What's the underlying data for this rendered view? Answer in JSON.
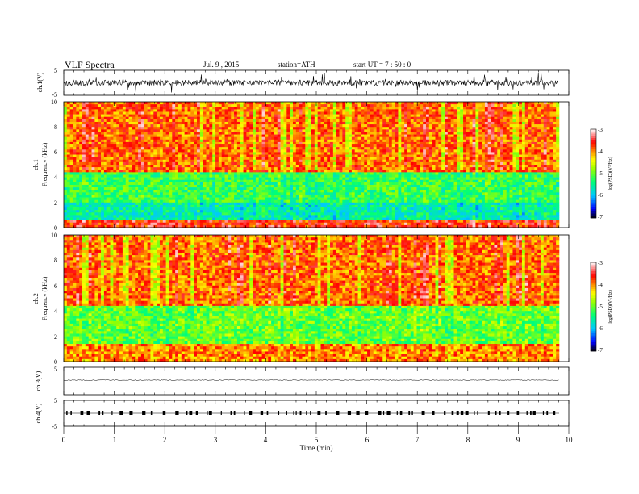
{
  "header": {
    "title": "VLF  Spectra",
    "date": "Jul.  9  , 2015",
    "station": "station=ATH",
    "start": "start  UT  =   7  : 50 : 0"
  },
  "chart_data": [
    {
      "type": "line",
      "panel": "ch1-waveform",
      "ylabel": "ch.1(V)",
      "ylim": [
        -5,
        5
      ],
      "yticks": [
        "5",
        "-5"
      ],
      "xlim": [
        0,
        10
      ],
      "note_series_extent_min": [
        0,
        9.8
      ],
      "approx_baseline_V": 0,
      "approx_band_V": [
        -2,
        2
      ]
    },
    {
      "type": "heatmap",
      "panel": "ch1-spectrogram",
      "ylabel": "ch.1\nFrequency  (kHz)",
      "ylabel_lines": [
        "ch.1",
        "Frequency  (kHz)"
      ],
      "ylim": [
        0,
        10
      ],
      "yticks": [
        "0",
        "2",
        "4",
        "6",
        "8",
        "10"
      ],
      "xlim": [
        0,
        10
      ],
      "colorbar": {
        "label": "log(PSD)(V²/Hz)",
        "range": [
          -7,
          -3
        ],
        "ticks": [
          "-3",
          "-4",
          "-5",
          "-6",
          "-7"
        ]
      },
      "bands_kHz_logPSD": [
        {
          "f": [
            0,
            0.6
          ],
          "level": -3.6
        },
        {
          "f": [
            0.6,
            2.0
          ],
          "level": -5.6
        },
        {
          "f": [
            2.0,
            4.5
          ],
          "level": -5.2
        },
        {
          "f": [
            4.5,
            10
          ],
          "level": -3.9
        }
      ]
    },
    {
      "type": "heatmap",
      "panel": "ch2-spectrogram",
      "ylabel": "ch.2\nFrequency  (kHz)",
      "ylabel_lines": [
        "ch.2",
        "Frequency  (kHz)"
      ],
      "ylim": [
        0,
        10
      ],
      "yticks": [
        "0",
        "2",
        "4",
        "6",
        "8",
        "10"
      ],
      "xlim": [
        0,
        10
      ],
      "colorbar": {
        "label": "log(PSD)(V²/Hz)",
        "range": [
          -7,
          -3
        ],
        "ticks": [
          "-3",
          "-4",
          "-5",
          "-6",
          "-7"
        ]
      },
      "bands_kHz_logPSD": [
        {
          "f": [
            0,
            1.4
          ],
          "level": -4.0
        },
        {
          "f": [
            1.4,
            4.5
          ],
          "level": -5.0
        },
        {
          "f": [
            4.5,
            10
          ],
          "level": -3.9
        }
      ]
    },
    {
      "type": "line",
      "panel": "ch3-waveform",
      "ylabel": "ch.3(V)",
      "ylim": [
        -5,
        5
      ],
      "yticks": [
        "5"
      ],
      "xlim": [
        0,
        10
      ],
      "approx_baseline_V": 0.3
    },
    {
      "type": "line",
      "panel": "ch4-waveform",
      "ylabel": "ch.4(V)",
      "ylim": [
        -5,
        5
      ],
      "yticks": [
        "5",
        "-5"
      ],
      "xlim": [
        0,
        10
      ],
      "approx_baseline_V": 0
    }
  ],
  "xaxis": {
    "label": "Time  (min)",
    "ticks": [
      "0",
      "1",
      "2",
      "3",
      "4",
      "5",
      "6",
      "7",
      "8",
      "9",
      "10"
    ],
    "range": [
      0,
      10
    ]
  },
  "colors": {
    "palette": [
      "#000000",
      "#0000ff",
      "#00ffff",
      "#00ff00",
      "#ffff00",
      "#ff8800",
      "#ff0000",
      "#ffffff"
    ]
  }
}
